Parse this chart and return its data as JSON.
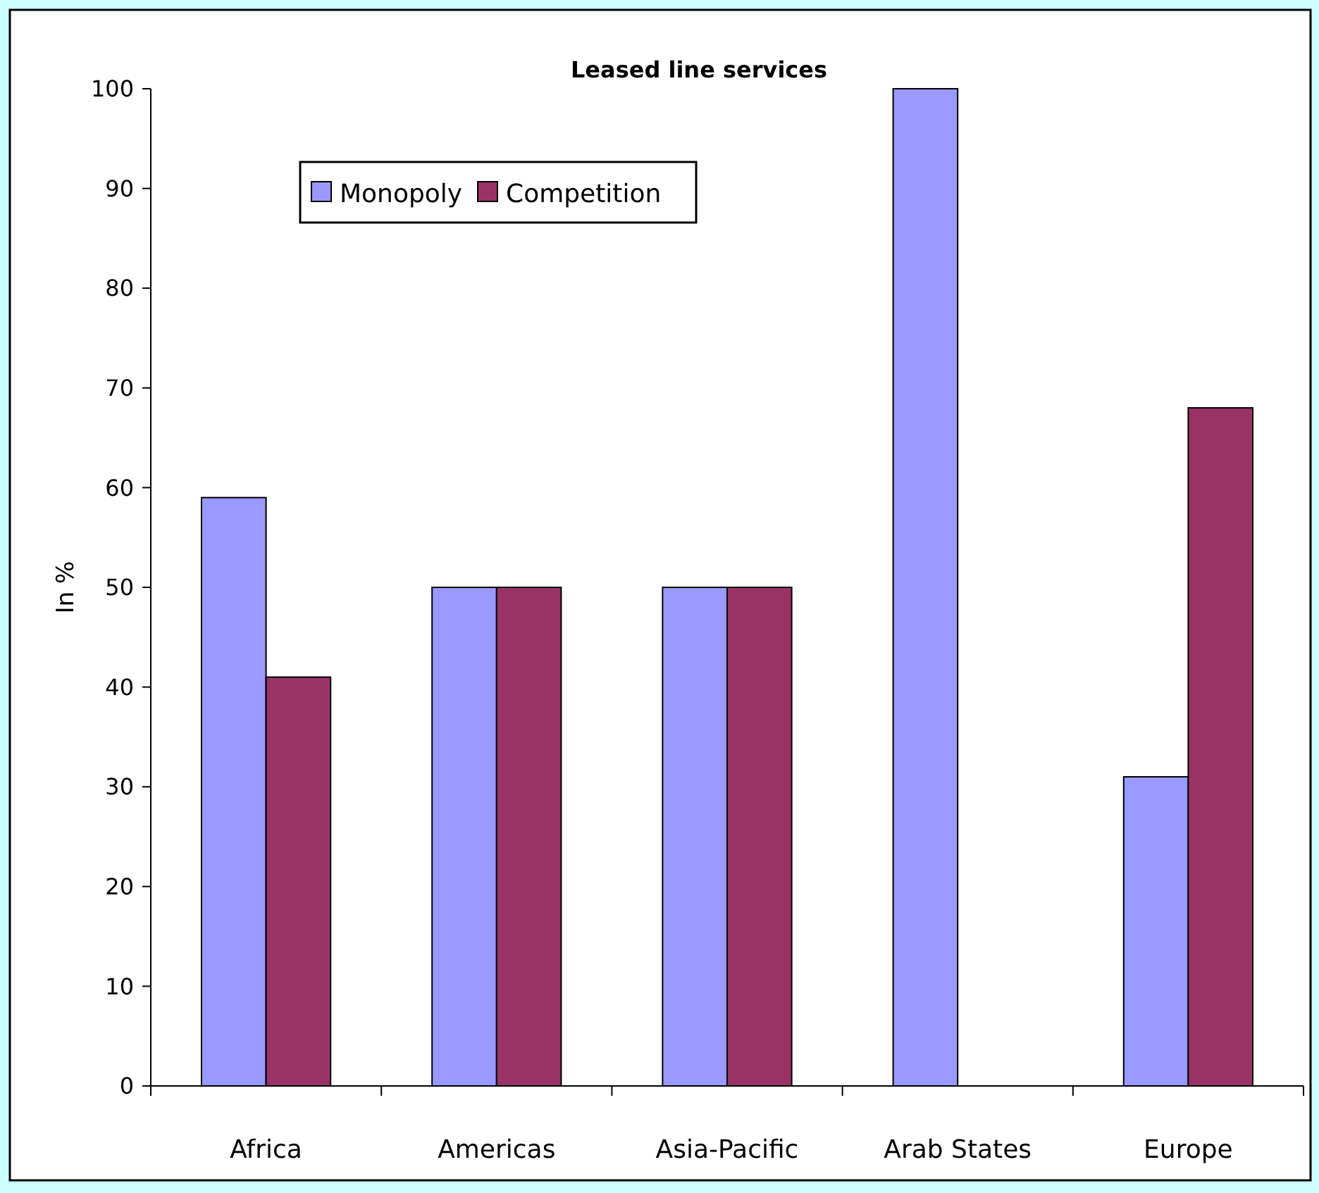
{
  "chart_data": {
    "type": "bar",
    "title": "Leased line services",
    "ylabel": "In %",
    "categories": [
      "Africa",
      "Americas",
      "Asia-Pacific",
      "Arab States",
      "Europe"
    ],
    "series": [
      {
        "name": "Monopoly",
        "color": "#9999ff",
        "values": [
          59,
          50,
          50,
          100,
          31
        ]
      },
      {
        "name": "Competition",
        "color": "#993366",
        "values": [
          41,
          50,
          50,
          0,
          68
        ]
      }
    ],
    "ylim": [
      0,
      100
    ],
    "yticks": [
      0,
      10,
      20,
      30,
      40,
      50,
      60,
      70,
      80,
      90,
      100
    ],
    "grid": false,
    "legend": "top left"
  }
}
